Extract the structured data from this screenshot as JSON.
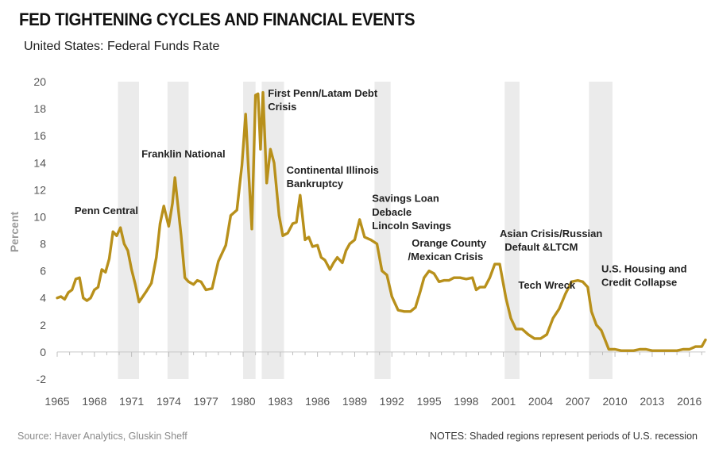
{
  "chart_data": {
    "type": "line",
    "title": "FED TIGHTENING CYCLES AND FINANCIAL EVENTS",
    "subtitle": "United States: Federal Funds Rate",
    "xlabel": "",
    "ylabel": "Percent",
    "xlim": [
      1965,
      2017.3
    ],
    "ylim": [
      -2,
      20
    ],
    "yticks": [
      "-2",
      "0",
      "2",
      "4",
      "6",
      "8",
      "10",
      "12",
      "14",
      "16",
      "18",
      "20"
    ],
    "xticks": [
      "1965",
      "1968",
      "1971",
      "1974",
      "1977",
      "1980",
      "1983",
      "1986",
      "1989",
      "1992",
      "1995",
      "1998",
      "2001",
      "2004",
      "2007",
      "2010",
      "2013",
      "2016"
    ],
    "recessions": [
      [
        1969.9,
        1971.6
      ],
      [
        1973.9,
        1975.6
      ],
      [
        1980.0,
        1981.0
      ],
      [
        1981.5,
        1983.3
      ],
      [
        1990.6,
        1991.9
      ],
      [
        2001.1,
        2002.3
      ],
      [
        2007.9,
        2009.8
      ]
    ],
    "series": [
      {
        "name": "Federal Funds Rate",
        "color": "#b8901b",
        "x": [
          1965.0,
          1965.3,
          1965.6,
          1965.9,
          1966.2,
          1966.5,
          1966.8,
          1967.1,
          1967.4,
          1967.7,
          1968.0,
          1968.3,
          1968.6,
          1968.9,
          1969.2,
          1969.5,
          1969.8,
          1970.1,
          1970.4,
          1970.7,
          1971.0,
          1971.3,
          1971.6,
          1971.9,
          1972.2,
          1972.6,
          1973.0,
          1973.3,
          1973.6,
          1974.0,
          1974.3,
          1974.5,
          1975.0,
          1975.3,
          1975.6,
          1976.0,
          1976.3,
          1976.6,
          1977.0,
          1977.5,
          1978.0,
          1978.6,
          1979.0,
          1979.5,
          1979.9,
          1980.2,
          1980.4,
          1980.7,
          1981.0,
          1981.2,
          1981.4,
          1981.6,
          1981.9,
          1982.2,
          1982.5,
          1982.9,
          1983.2,
          1983.6,
          1984.0,
          1984.3,
          1984.6,
          1985.0,
          1985.3,
          1985.6,
          1986.0,
          1986.3,
          1986.6,
          1987.0,
          1987.3,
          1987.6,
          1988.0,
          1988.3,
          1988.6,
          1989.0,
          1989.4,
          1989.8,
          1990.3,
          1990.8,
          1991.2,
          1991.6,
          1992.0,
          1992.5,
          1993.0,
          1993.5,
          1993.9,
          1994.3,
          1994.6,
          1995.0,
          1995.4,
          1995.8,
          1996.2,
          1996.6,
          1997.0,
          1997.5,
          1998.0,
          1998.5,
          1998.8,
          1999.1,
          1999.5,
          1999.9,
          2000.3,
          2000.7,
          2001.2,
          2001.6,
          2002.0,
          2002.5,
          2003.0,
          2003.5,
          2004.0,
          2004.5,
          2005.0,
          2005.5,
          2006.0,
          2006.5,
          2007.0,
          2007.4,
          2007.8,
          2008.1,
          2008.5,
          2008.9,
          2009.5,
          2010.0,
          2010.5,
          2011.0,
          2011.5,
          2012.0,
          2012.5,
          2013.0,
          2013.5,
          2014.0,
          2014.5,
          2015.0,
          2015.5,
          2016.0,
          2016.5,
          2017.0,
          2017.3
        ],
        "y": [
          4.0,
          4.1,
          3.9,
          4.4,
          4.6,
          5.4,
          5.5,
          4.0,
          3.8,
          4.0,
          4.6,
          4.8,
          6.1,
          5.9,
          6.9,
          8.9,
          8.6,
          9.2,
          8.0,
          7.5,
          6.1,
          5.0,
          3.7,
          4.1,
          4.5,
          5.1,
          7.0,
          9.5,
          10.8,
          9.3,
          11.0,
          12.9,
          8.6,
          5.5,
          5.2,
          5.0,
          5.3,
          5.2,
          4.6,
          4.7,
          6.7,
          7.9,
          10.1,
          10.5,
          13.8,
          17.6,
          14.0,
          9.1,
          19.0,
          19.1,
          15.0,
          19.2,
          12.5,
          15.0,
          14.0,
          10.1,
          8.6,
          8.8,
          9.5,
          9.6,
          11.6,
          8.3,
          8.5,
          7.8,
          7.9,
          7.0,
          6.8,
          6.1,
          6.6,
          7.0,
          6.6,
          7.5,
          8.0,
          8.3,
          9.8,
          8.5,
          8.3,
          8.0,
          6.0,
          5.7,
          4.1,
          3.1,
          3.0,
          3.0,
          3.3,
          4.5,
          5.5,
          6.0,
          5.8,
          5.2,
          5.3,
          5.3,
          5.5,
          5.5,
          5.4,
          5.5,
          4.6,
          4.8,
          4.8,
          5.5,
          6.5,
          6.5,
          4.0,
          2.5,
          1.7,
          1.7,
          1.3,
          1.0,
          1.0,
          1.3,
          2.5,
          3.2,
          4.3,
          5.2,
          5.3,
          5.2,
          4.8,
          3.0,
          2.0,
          1.6,
          0.2,
          0.2,
          0.1,
          0.1,
          0.1,
          0.2,
          0.2,
          0.1,
          0.1,
          0.1,
          0.1,
          0.1,
          0.2,
          0.2,
          0.4,
          0.4,
          0.9
        ]
      }
    ],
    "annotations": [
      {
        "label": "Penn Central",
        "x": 1966.4,
        "y": 10.2
      },
      {
        "label": "Franklin National",
        "x": 1971.8,
        "y": 14.4
      },
      {
        "label": "First Penn/Latam Debt",
        "x": 1982.0,
        "y": 18.9
      },
      {
        "label": "Crisis",
        "x": 1982.0,
        "y": 17.9
      },
      {
        "label": "Continental Illinois",
        "x": 1983.5,
        "y": 13.2
      },
      {
        "label": "Bankruptcy",
        "x": 1983.5,
        "y": 12.2
      },
      {
        "label": "Savings Loan",
        "x": 1990.4,
        "y": 11.1
      },
      {
        "label": "Debacle",
        "x": 1990.4,
        "y": 10.1
      },
      {
        "label": "Lincoln Savings",
        "x": 1990.4,
        "y": 9.1
      },
      {
        "label": "Orange County",
        "x": 1993.6,
        "y": 7.8
      },
      {
        "label": "/Mexican Crisis",
        "x": 1993.3,
        "y": 6.8
      },
      {
        "label": "Asian Crisis/Russian",
        "x": 2000.7,
        "y": 8.5
      },
      {
        "label": "Default &LTCM",
        "x": 2001.1,
        "y": 7.5
      },
      {
        "label": "Tech Wreck",
        "x": 2002.2,
        "y": 4.7
      },
      {
        "label": "U.S. Housing and",
        "x": 2008.9,
        "y": 5.9
      },
      {
        "label": "Credit Collapse",
        "x": 2008.9,
        "y": 4.9
      }
    ]
  },
  "footer": {
    "source": "Source: Haver Analytics, Gluskin Sheff",
    "notes": "NOTES: Shaded regions represent periods of U.S. recession"
  }
}
